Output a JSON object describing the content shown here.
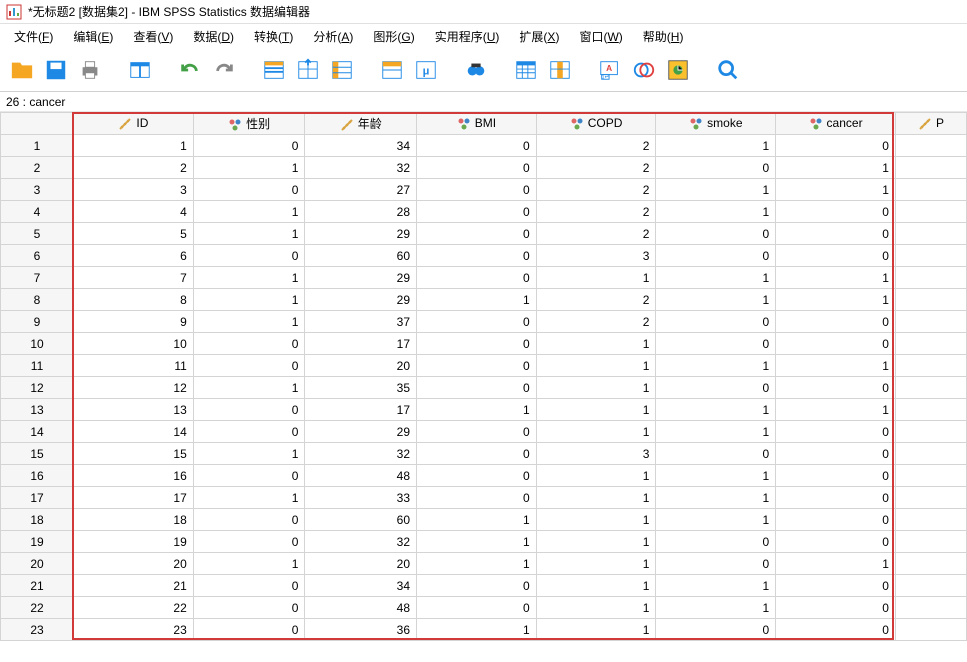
{
  "window": {
    "title": "*无标题2 [数据集2] - IBM SPSS Statistics 数据编辑器"
  },
  "menu": {
    "items": [
      {
        "label": "文件(F)",
        "u": "F"
      },
      {
        "label": "编辑(E)",
        "u": "E"
      },
      {
        "label": "查看(V)",
        "u": "V"
      },
      {
        "label": "数据(D)",
        "u": "D"
      },
      {
        "label": "转换(T)",
        "u": "T"
      },
      {
        "label": "分析(A)",
        "u": "A"
      },
      {
        "label": "图形(G)",
        "u": "G"
      },
      {
        "label": "实用程序(U)",
        "u": "U"
      },
      {
        "label": "扩展(X)",
        "u": "X"
      },
      {
        "label": "窗口(W)",
        "u": "W"
      },
      {
        "label": "帮助(H)",
        "u": "H"
      }
    ]
  },
  "status": {
    "cell_ref": "26 : cancer"
  },
  "columns": [
    {
      "name": "ID",
      "type": "scale"
    },
    {
      "name": "性别",
      "type": "nominal"
    },
    {
      "name": "年龄",
      "type": "scale"
    },
    {
      "name": "BMI",
      "type": "nominal"
    },
    {
      "name": "COPD",
      "type": "nominal"
    },
    {
      "name": "smoke",
      "type": "nominal"
    },
    {
      "name": "cancer",
      "type": "nominal"
    },
    {
      "name": "P",
      "type": "scale"
    }
  ],
  "rows": [
    [
      1,
      0,
      34,
      0,
      2,
      1,
      0
    ],
    [
      2,
      1,
      32,
      0,
      2,
      0,
      1
    ],
    [
      3,
      0,
      27,
      0,
      2,
      1,
      1
    ],
    [
      4,
      1,
      28,
      0,
      2,
      1,
      0
    ],
    [
      5,
      1,
      29,
      0,
      2,
      0,
      0
    ],
    [
      6,
      0,
      60,
      0,
      3,
      0,
      0
    ],
    [
      7,
      1,
      29,
      0,
      1,
      1,
      1
    ],
    [
      8,
      1,
      29,
      1,
      2,
      1,
      1
    ],
    [
      9,
      1,
      37,
      0,
      2,
      0,
      0
    ],
    [
      10,
      0,
      17,
      0,
      1,
      0,
      0
    ],
    [
      11,
      0,
      20,
      0,
      1,
      1,
      1
    ],
    [
      12,
      1,
      35,
      0,
      1,
      0,
      0
    ],
    [
      13,
      0,
      17,
      1,
      1,
      1,
      1
    ],
    [
      14,
      0,
      29,
      0,
      1,
      1,
      0
    ],
    [
      15,
      1,
      32,
      0,
      3,
      0,
      0
    ],
    [
      16,
      0,
      48,
      0,
      1,
      1,
      0
    ],
    [
      17,
      1,
      33,
      0,
      1,
      1,
      0
    ],
    [
      18,
      0,
      60,
      1,
      1,
      1,
      0
    ],
    [
      19,
      0,
      32,
      1,
      1,
      0,
      0
    ],
    [
      20,
      1,
      20,
      1,
      1,
      0,
      1
    ],
    [
      21,
      0,
      34,
      0,
      1,
      1,
      0
    ],
    [
      22,
      0,
      48,
      0,
      1,
      1,
      0
    ],
    [
      23,
      0,
      36,
      1,
      1,
      0,
      0
    ]
  ],
  "colors": {
    "scale_icon": "#d9a441",
    "nominal_a": "#e06666",
    "nominal_b": "#6aa84f",
    "nominal_c": "#3d85c6",
    "highlight": "#d23a3a"
  },
  "toolbar": {
    "buttons": [
      "open",
      "save",
      "print",
      "_sep",
      "recent",
      "_sep",
      "undo",
      "redo",
      "_sep",
      "goto-case",
      "variables",
      "find",
      "_sep",
      "split",
      "weight",
      "_sep",
      "binoculars",
      "_sep",
      "select-cases",
      "insert-variable",
      "_sep",
      "value-labels",
      "use-sets",
      "chart-builder",
      "_sep",
      "search"
    ]
  }
}
